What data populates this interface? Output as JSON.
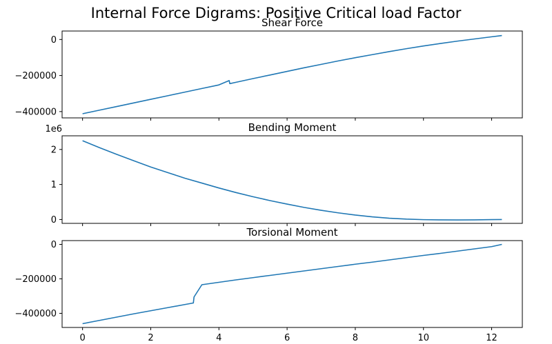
{
  "suptitle": "Internal Force Digrams: Positive Critical load Factor",
  "colors": {
    "line": "#1f77b4",
    "axes": "#000000",
    "background": "#ffffff"
  },
  "x_ticks": [
    "0",
    "2",
    "4",
    "6",
    "8",
    "10",
    "12"
  ],
  "chart_data": [
    {
      "type": "line",
      "title": "Shear Force",
      "xlabel": "",
      "ylabel": "",
      "xlim": [
        -0.6,
        12.9
      ],
      "ylim": [
        -435000,
        47000
      ],
      "yticks": [
        0,
        -200000,
        -400000
      ],
      "ytick_labels": [
        "0",
        "−200000",
        "−400000"
      ],
      "offset_text": "",
      "x_ticklabels_visible": false,
      "grid": false,
      "x": [
        0.0,
        0.5,
        1.0,
        1.5,
        2.0,
        2.5,
        3.0,
        3.5,
        4.0,
        4.3,
        4.32,
        4.5,
        5.0,
        5.5,
        6.0,
        6.5,
        7.0,
        7.5,
        8.0,
        8.5,
        9.0,
        9.5,
        10.0,
        10.5,
        11.0,
        11.5,
        12.0,
        12.3
      ],
      "y": [
        -412000,
        -392000,
        -372000,
        -352000,
        -332000,
        -312000,
        -292000,
        -272000,
        -252000,
        -228000,
        -245000,
        -237500,
        -217000,
        -197000,
        -177000,
        -157000,
        -138000,
        -119000,
        -101000,
        -84000,
        -67000,
        -51000,
        -36000,
        -22000,
        -9000,
        3000,
        15000,
        22000
      ]
    },
    {
      "type": "line",
      "title": "Bending Moment",
      "xlabel": "",
      "ylabel": "",
      "xlim": [
        -0.6,
        12.9
      ],
      "ylim": [
        -110000,
        2390000
      ],
      "yticks": [
        0,
        1000000,
        2000000
      ],
      "ytick_labels": [
        "0",
        "1",
        "2"
      ],
      "offset_text": "1e6",
      "x_ticklabels_visible": false,
      "grid": false,
      "x": [
        0.0,
        0.5,
        1.0,
        1.5,
        2.0,
        2.5,
        3.0,
        3.5,
        4.0,
        4.5,
        5.0,
        5.5,
        6.0,
        6.5,
        7.0,
        7.5,
        8.0,
        8.5,
        9.0,
        9.5,
        10.0,
        10.5,
        11.0,
        11.5,
        12.0,
        12.3
      ],
      "y": [
        2250000,
        2050000,
        1860000,
        1680000,
        1500000,
        1340000,
        1180000,
        1040000,
        900000,
        770000,
        650000,
        540000,
        440000,
        345000,
        262000,
        190000,
        127000,
        76000,
        37000,
        11000,
        -4000,
        -11000,
        -12000,
        -10000,
        -3000,
        0
      ]
    },
    {
      "type": "line",
      "title": "Torsional Moment",
      "xlabel": "",
      "ylabel": "",
      "xlim": [
        -0.6,
        12.9
      ],
      "ylim": [
        -482000,
        22000
      ],
      "yticks": [
        0,
        -200000,
        -400000
      ],
      "ytick_labels": [
        "0",
        "−200000",
        "−400000"
      ],
      "offset_text": "",
      "x_ticklabels_visible": true,
      "grid": false,
      "x": [
        0.0,
        0.5,
        1.0,
        1.5,
        2.0,
        2.5,
        3.0,
        3.25,
        3.27,
        3.5,
        4.0,
        4.5,
        5.0,
        5.5,
        6.0,
        6.5,
        7.0,
        7.5,
        8.0,
        8.5,
        9.0,
        9.5,
        10.0,
        10.5,
        11.0,
        11.5,
        12.0,
        12.3
      ],
      "y": [
        -460000,
        -441000,
        -422000,
        -403000,
        -385000,
        -367000,
        -349000,
        -340000,
        -305000,
        -234000,
        -220000,
        -206000,
        -193000,
        -180000,
        -167000,
        -154000,
        -141000,
        -128000,
        -115000,
        -103000,
        -90000,
        -77000,
        -64000,
        -52000,
        -39000,
        -26000,
        -13000,
        0
      ]
    }
  ]
}
